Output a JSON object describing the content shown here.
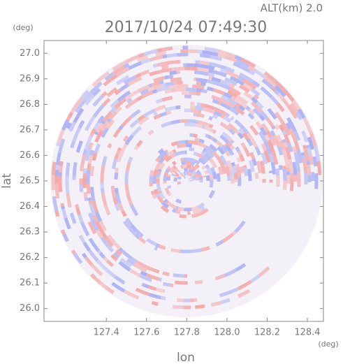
{
  "chart_data": {
    "type": "radar-ppi",
    "annotation": "ALT(km) 2.0",
    "title": "2017/10/24 07:49:30",
    "xlabel": "lon",
    "ylabel": "lat",
    "xunit": "(deg)",
    "yunit": "(deg)",
    "xlim": [
      127.09,
      128.48
    ],
    "xticks": [
      127.4,
      127.6,
      127.8,
      {
        "value": 128.0,
        "label": "128.0"
      },
      128.2,
      128.4
    ],
    "ylim": [
      25.95,
      27.05
    ],
    "yticks": [
      {
        "value": 26.0,
        "label": "26.0"
      },
      26.1,
      26.2,
      26.3,
      26.4,
      26.5,
      26.6,
      26.7,
      26.8,
      26.9,
      {
        "value": 27.0,
        "label": "27.0"
      }
    ],
    "colors": [
      "#f4a9a9",
      "#aab0f4"
    ]
  }
}
